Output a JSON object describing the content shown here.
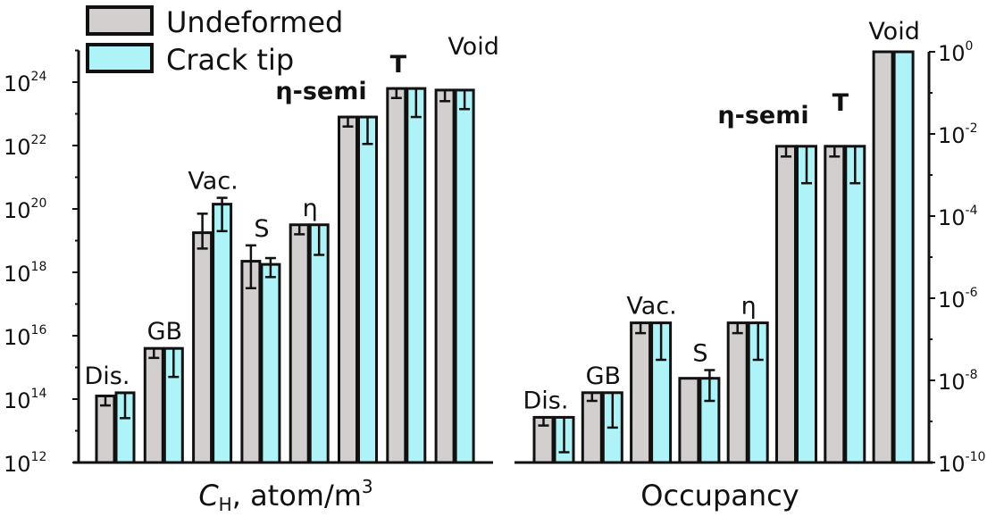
{
  "chart_data": [
    {
      "type": "bar",
      "yscale": "log",
      "xlabel_main": "C",
      "xlabel_sub": "H",
      "xlabel_rest": ", atom/m",
      "xlabel_sup": "3",
      "ylim_log10": [
        12,
        25
      ],
      "yticks_log10": [
        12,
        14,
        16,
        18,
        20,
        22,
        24
      ],
      "categories": [
        "Dis.",
        "GB",
        "Vac.",
        "S",
        "η",
        "η-semi",
        "T",
        "Void"
      ],
      "series": [
        {
          "name": "Undeformed",
          "values_log10": [
            14.1,
            15.6,
            19.25,
            18.35,
            19.5,
            22.9,
            23.8,
            23.75
          ],
          "err_low_log10": [
            13.8,
            15.3,
            18.75,
            17.5,
            19.2,
            22.6,
            23.5,
            23.4
          ],
          "err_high_log10": [
            14.1,
            15.6,
            19.85,
            18.85,
            19.5,
            22.9,
            23.8,
            23.75
          ]
        },
        {
          "name": "Crack tip",
          "values_log10": [
            14.2,
            15.6,
            20.15,
            18.25,
            19.5,
            22.9,
            23.8,
            23.75
          ],
          "err_low_log10": [
            13.4,
            14.7,
            19.3,
            17.85,
            18.55,
            22.05,
            22.9,
            23.15
          ],
          "err_high_log10": [
            14.2,
            15.6,
            20.35,
            18.45,
            19.5,
            22.9,
            23.8,
            23.75
          ]
        }
      ]
    },
    {
      "type": "bar",
      "yscale": "log",
      "xlabel": "Occupancy",
      "ylim_log10": [
        -10,
        0
      ],
      "yticks_log10": [
        0,
        -2,
        -4,
        -6,
        -8,
        -10
      ],
      "categories": [
        "Dis.",
        "GB",
        "Vac.",
        "S",
        "η",
        "η-semi",
        "T",
        "Void"
      ],
      "series": [
        {
          "name": "Undeformed",
          "values_log10": [
            -8.9,
            -8.3,
            -6.6,
            -7.95,
            -6.6,
            -2.3,
            -2.3,
            0
          ],
          "err_low_log10": [
            -9.1,
            -8.5,
            -6.85,
            -7.95,
            -6.85,
            -2.55,
            -2.55,
            0
          ],
          "err_high_log10": [
            -8.9,
            -8.3,
            -6.6,
            -7.95,
            -6.6,
            -2.3,
            -2.3,
            0
          ]
        },
        {
          "name": "Crack tip",
          "values_log10": [
            -8.9,
            -8.3,
            -6.6,
            -7.95,
            -6.6,
            -2.3,
            -2.3,
            0
          ],
          "err_low_log10": [
            -9.75,
            -9.15,
            -7.5,
            -8.5,
            -7.5,
            -3.2,
            -3.2,
            0
          ],
          "err_high_log10": [
            -8.9,
            -8.3,
            -6.6,
            -7.75,
            -6.6,
            -2.3,
            -2.3,
            0
          ]
        }
      ]
    }
  ],
  "legend": [
    "Undeformed",
    "Crack tip"
  ],
  "colors": {
    "undeformed": "#d3cfcf",
    "crack_tip": "#aef3f8",
    "eta_semi": "#e8121b",
    "T": "#0b3f8e",
    "outline": "#111111"
  }
}
